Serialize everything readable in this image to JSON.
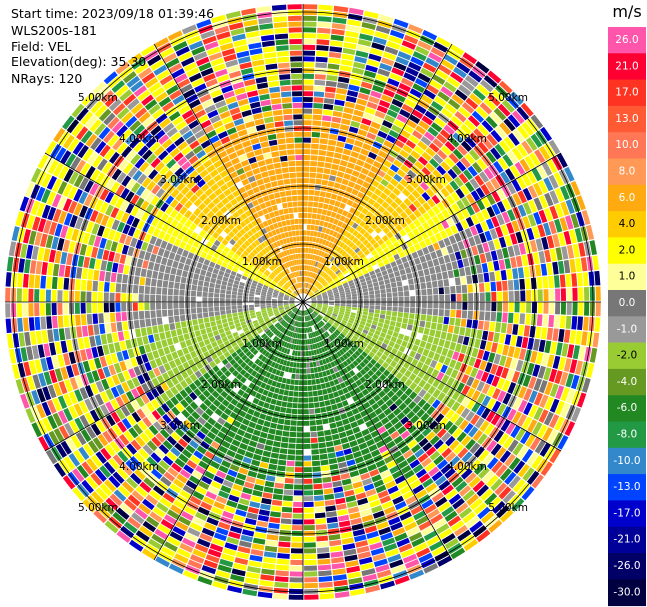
{
  "header": {
    "start_time": "Start time: 2023/09/18 01:39:46",
    "instrument": "WLS200s-181",
    "field": "Field: VEL",
    "elevation": "Elevation(deg): 35.30",
    "nrays": "NRays: 120"
  },
  "ppi": {
    "ring_labels": [
      "1.00km",
      "2.00km",
      "3.00km",
      "4.00km",
      "5.00km"
    ],
    "nrays": 120
  },
  "colorbar": {
    "unit": "m/s",
    "ticks": [
      "26.0",
      "21.0",
      "17.0",
      "13.0",
      "10.0",
      "8.0",
      "6.0",
      "4.0",
      "2.0",
      "1.0",
      "0.0",
      "-1.0",
      "-2.0",
      "-4.0",
      "-6.0",
      "-8.0",
      "-10.0",
      "-13.0",
      "-17.0",
      "-21.0",
      "-26.0",
      "-30.0"
    ],
    "colors": [
      "#ff55aa",
      "#ff0033",
      "#ff3322",
      "#ff5a33",
      "#ff7755",
      "#ff9955",
      "#ffaa11",
      "#ffcc00",
      "#ffff00",
      "#ffff99",
      "#777777",
      "#999999",
      "#99cc33",
      "#669922",
      "#228822",
      "#229944",
      "#3388cc",
      "#0044ff",
      "#0000cc",
      "#000099",
      "#000066",
      "#000040"
    ]
  }
}
